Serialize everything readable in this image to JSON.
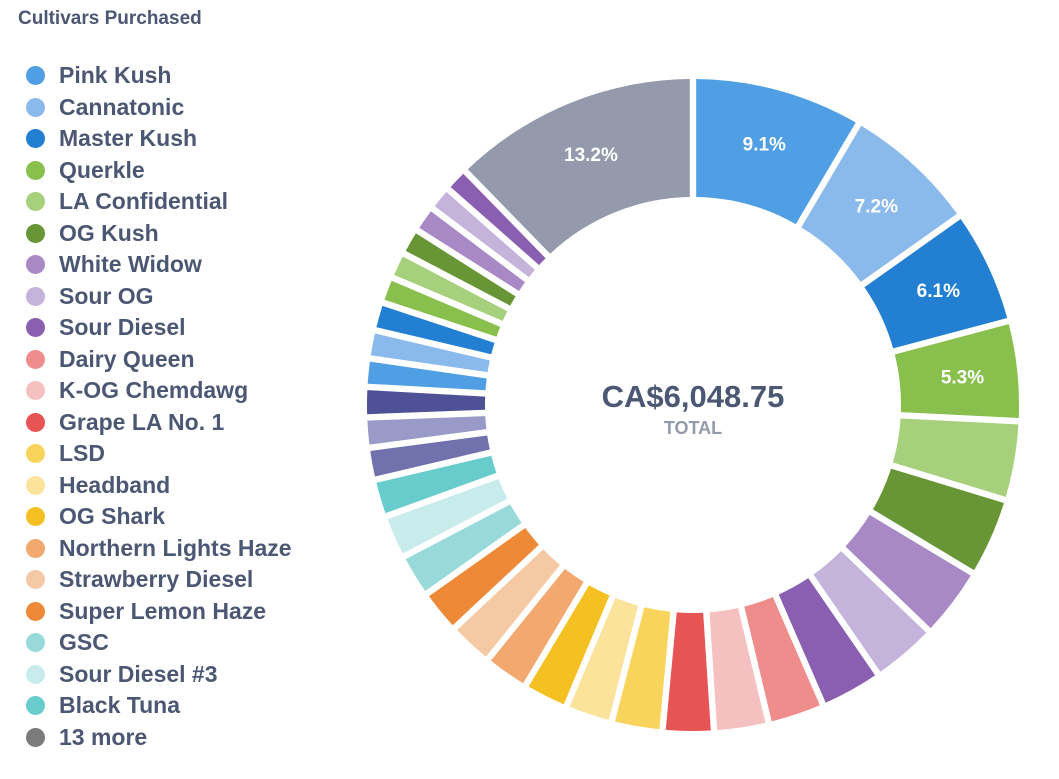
{
  "chart_data": {
    "type": "pie",
    "variant": "donut",
    "title": "Cultivars Purchased",
    "center_value": "CA$6,048.75",
    "center_label": "TOTAL",
    "legend_position": "left",
    "legend": [
      {
        "name": "Pink Kush",
        "color": "#509ee3"
      },
      {
        "name": "Cannatonic",
        "color": "#8ab9ec"
      },
      {
        "name": "Master Kush",
        "color": "#227fd2"
      },
      {
        "name": "Querkle",
        "color": "#88bf4d"
      },
      {
        "name": "LA Confidential",
        "color": "#a7d07c"
      },
      {
        "name": "OG Kush",
        "color": "#689636"
      },
      {
        "name": "White Widow",
        "color": "#a989c5"
      },
      {
        "name": "Sour OG",
        "color": "#c4b3da"
      },
      {
        "name": "Sour Diesel",
        "color": "#8a5eb0"
      },
      {
        "name": "Dairy Queen",
        "color": "#ef8c8c"
      },
      {
        "name": "K-OG Chemdawg",
        "color": "#f5c0c0"
      },
      {
        "name": "Grape LA No. 1",
        "color": "#e75454"
      },
      {
        "name": "LSD",
        "color": "#f9d45c"
      },
      {
        "name": "Headband",
        "color": "#fbe39c"
      },
      {
        "name": "OG Shark",
        "color": "#f5c022"
      },
      {
        "name": "Northern Lights Haze",
        "color": "#f2a86f"
      },
      {
        "name": "Strawberry Diesel",
        "color": "#f6c9a5"
      },
      {
        "name": "Super Lemon Haze",
        "color": "#ee8a37"
      },
      {
        "name": "GSC",
        "color": "#98d9d9"
      },
      {
        "name": "Sour Diesel #3",
        "color": "#c8ecec"
      },
      {
        "name": "Black Tuna",
        "color": "#69cccc"
      },
      {
        "name": "13 more",
        "color": "#7b7b7b"
      }
    ],
    "slices": [
      {
        "value": 9.1,
        "color": "#509ee3",
        "label": "9.1%"
      },
      {
        "value": 7.2,
        "color": "#8ab9ec",
        "label": "7.2%"
      },
      {
        "value": 6.1,
        "color": "#227fd2",
        "label": "6.1%"
      },
      {
        "value": 5.3,
        "color": "#88bf4d",
        "label": "5.3%"
      },
      {
        "value": 4.2,
        "color": "#a7d07c",
        "label": ""
      },
      {
        "value": 4.2,
        "color": "#689636",
        "label": ""
      },
      {
        "value": 3.8,
        "color": "#a989c5",
        "label": ""
      },
      {
        "value": 3.5,
        "color": "#c4b3da",
        "label": ""
      },
      {
        "value": 3.3,
        "color": "#8a5eb0",
        "label": ""
      },
      {
        "value": 3.0,
        "color": "#ef8c8c",
        "label": ""
      },
      {
        "value": 2.9,
        "color": "#f5c0c0",
        "label": ""
      },
      {
        "value": 2.7,
        "color": "#e75454",
        "label": ""
      },
      {
        "value": 2.7,
        "color": "#f9d45c",
        "label": ""
      },
      {
        "value": 2.5,
        "color": "#fbe39c",
        "label": ""
      },
      {
        "value": 2.4,
        "color": "#f5c022",
        "label": ""
      },
      {
        "value": 2.4,
        "color": "#f2a86f",
        "label": ""
      },
      {
        "value": 2.4,
        "color": "#f6c9a5",
        "label": ""
      },
      {
        "value": 2.3,
        "color": "#ee8a37",
        "label": ""
      },
      {
        "value": 2.3,
        "color": "#98d9d9",
        "label": ""
      },
      {
        "value": 2.3,
        "color": "#c8ecec",
        "label": ""
      },
      {
        "value": 2.0,
        "color": "#69cccc",
        "label": ""
      },
      {
        "value": 1.7,
        "color": "#7172ad",
        "label": ""
      },
      {
        "value": 1.6,
        "color": "#999ac8",
        "label": ""
      },
      {
        "value": 1.6,
        "color": "#4f5197",
        "label": ""
      },
      {
        "value": 1.5,
        "color": "#509ee3",
        "label": ""
      },
      {
        "value": 1.5,
        "color": "#8ab9ec",
        "label": ""
      },
      {
        "value": 1.5,
        "color": "#227fd2",
        "label": ""
      },
      {
        "value": 1.4,
        "color": "#88bf4d",
        "label": ""
      },
      {
        "value": 1.4,
        "color": "#a7d07c",
        "label": ""
      },
      {
        "value": 1.4,
        "color": "#689636",
        "label": ""
      },
      {
        "value": 1.4,
        "color": "#a989c5",
        "label": ""
      },
      {
        "value": 1.3,
        "color": "#c4b3da",
        "label": ""
      },
      {
        "value": 1.3,
        "color": "#8a5eb0",
        "label": ""
      },
      {
        "value": 13.2,
        "color": "#949aab",
        "label": "13.2%"
      }
    ]
  }
}
